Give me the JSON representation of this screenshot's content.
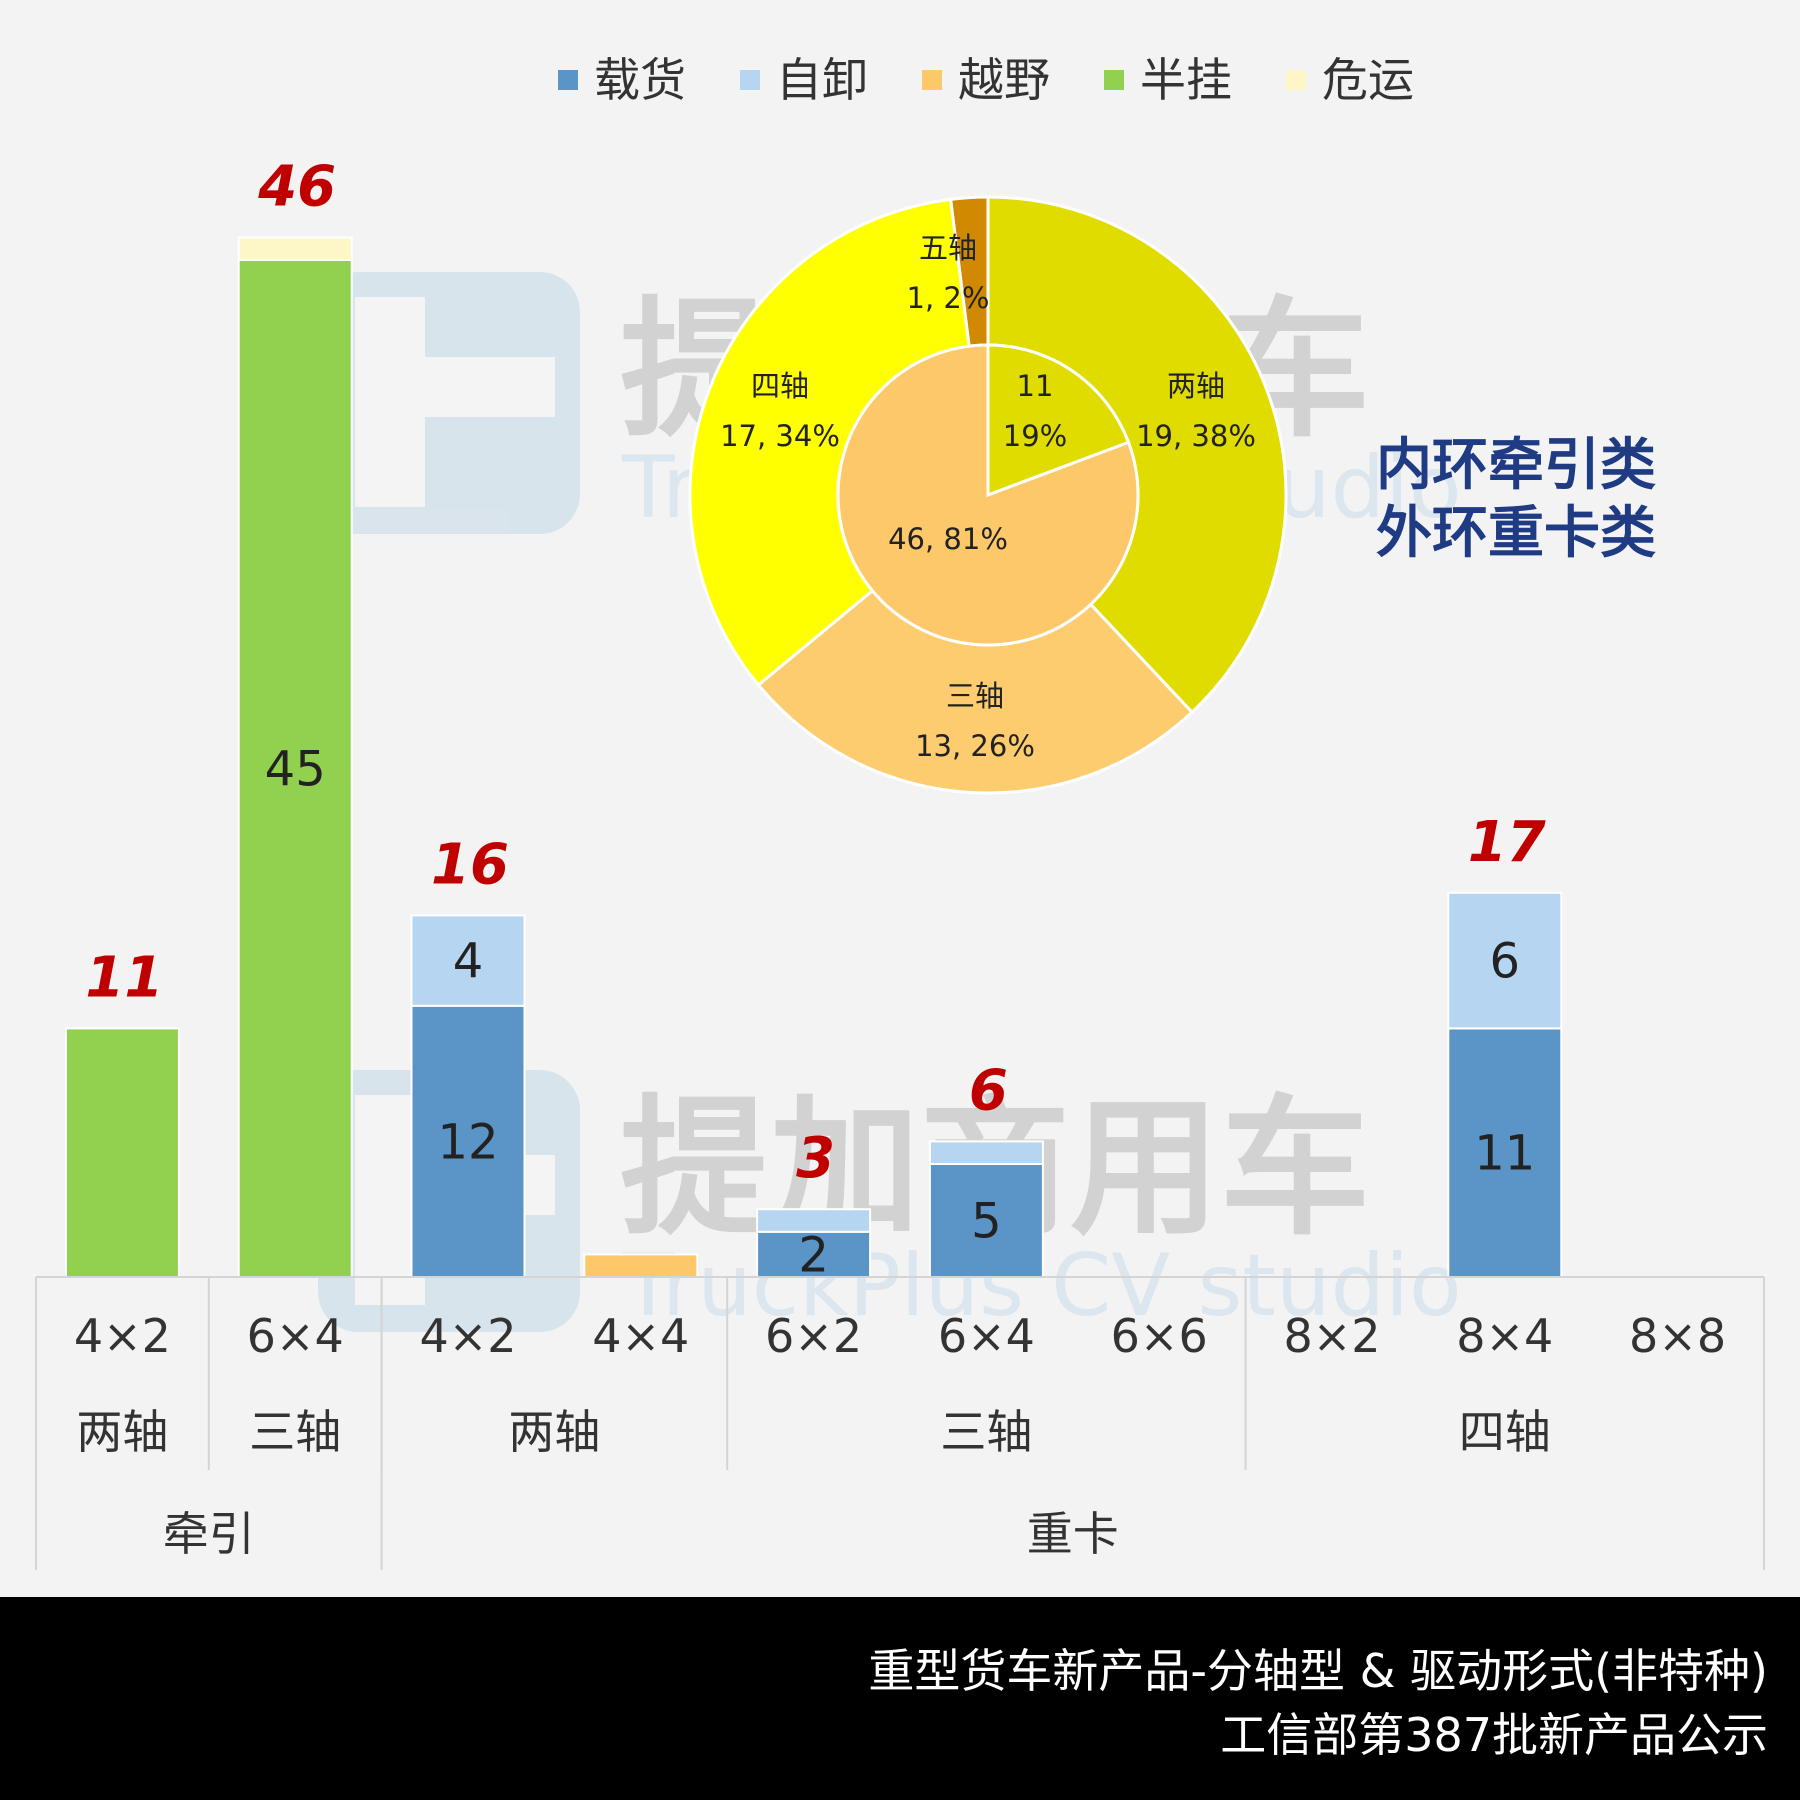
{
  "colors": {
    "background": "#f3f3f3",
    "载货": "#5b94c6",
    "自卸": "#b6d5f0",
    "越野": "#fdc86a",
    "半挂": "#92d050",
    "危运": "#fdf6c6",
    "total_label": "#c00000",
    "note": "#1f3b84",
    "inner_ring_牵引": "#fdc86a",
    "inner_ring_重卡": "#e1dc00",
    "outer_两轴": "#e1dc00",
    "outer_三轴": "#fdcc6e",
    "outer_四轴": "#ffff00",
    "outer_五轴": "#d08900"
  },
  "watermark": {
    "brand_cn": "提加商用车",
    "brand_en": "TruckPlus CV studio"
  },
  "note_lines": [
    "内环牵引类",
    "外环重卡类"
  ],
  "footer": {
    "line1": "重型货车新产品-分轴型 & 驱动形式(非特种)",
    "line2": "工信部第387批新产品公示"
  },
  "chart_data": [
    {
      "type": "bar",
      "stacked": true,
      "legend": [
        "载货",
        "自卸",
        "越野",
        "半挂",
        "危运"
      ],
      "legend_position": "top",
      "categories": [
        {
          "drive": "4×2",
          "axle": "两轴",
          "group": "牵引"
        },
        {
          "drive": "6×4",
          "axle": "三轴",
          "group": "牵引"
        },
        {
          "drive": "4×2",
          "axle": "两轴",
          "group": "重卡"
        },
        {
          "drive": "4×4",
          "axle": "两轴",
          "group": "重卡"
        },
        {
          "drive": "6×2",
          "axle": "三轴",
          "group": "重卡"
        },
        {
          "drive": "6×4",
          "axle": "三轴",
          "group": "重卡"
        },
        {
          "drive": "6×6",
          "axle": "三轴",
          "group": "重卡"
        },
        {
          "drive": "8×2",
          "axle": "四轴",
          "group": "重卡"
        },
        {
          "drive": "8×4",
          "axle": "四轴",
          "group": "重卡"
        },
        {
          "drive": "8×8",
          "axle": "四轴",
          "group": "重卡"
        }
      ],
      "axle_groups": [
        {
          "label": "两轴",
          "span": 1
        },
        {
          "label": "三轴",
          "span": 1
        },
        {
          "label": "两轴",
          "span": 2
        },
        {
          "label": "三轴",
          "span": 3
        },
        {
          "label": "四轴",
          "span": 3
        }
      ],
      "type_groups": [
        {
          "label": "牵引",
          "span": 2
        },
        {
          "label": "重卡",
          "span": 8
        }
      ],
      "series": [
        {
          "name": "载货",
          "values": [
            0,
            0,
            12,
            0,
            2,
            5,
            0,
            0,
            11,
            0
          ],
          "labels": [
            "",
            "",
            "12",
            "",
            "2",
            "5",
            "",
            "",
            "11",
            ""
          ]
        },
        {
          "name": "自卸",
          "values": [
            0,
            0,
            4,
            0,
            1,
            1,
            0,
            0,
            6,
            0
          ],
          "labels": [
            "",
            "",
            "4",
            "",
            "",
            "",
            "",
            "",
            "6",
            ""
          ]
        },
        {
          "name": "越野",
          "values": [
            0,
            0,
            0,
            1,
            0,
            0,
            0,
            0,
            0,
            0
          ],
          "labels": [
            "",
            "",
            "",
            "",
            "",
            "",
            "",
            "",
            "",
            ""
          ]
        },
        {
          "name": "半挂",
          "values": [
            11,
            45,
            0,
            0,
            0,
            0,
            0,
            0,
            0,
            0
          ],
          "labels": [
            "",
            "45",
            "",
            "",
            "",
            "",
            "",
            "",
            "",
            ""
          ]
        },
        {
          "name": "危运",
          "values": [
            0,
            1,
            0,
            0,
            0,
            0,
            0,
            0,
            0,
            0
          ],
          "labels": [
            "",
            "",
            "",
            "",
            "",
            "",
            "",
            "",
            "",
            ""
          ]
        }
      ],
      "totals": [
        "11",
        "46",
        "16",
        "",
        "3",
        "6",
        "",
        "",
        "17",
        ""
      ],
      "ylim": [
        0,
        50
      ]
    },
    {
      "type": "pie",
      "subtype": "doughnut",
      "inner_ring": [
        {
          "name": "",
          "value": 11,
          "label_lines": [
            "11",
            "19%"
          ]
        },
        {
          "name": "",
          "value": 46,
          "label_lines": [
            "46, 81%"
          ]
        }
      ],
      "outer_ring": [
        {
          "name": "两轴",
          "value": 19,
          "label_lines": [
            "两轴",
            "19, 38%"
          ]
        },
        {
          "name": "三轴",
          "value": 13,
          "label_lines": [
            "三轴",
            "13, 26%"
          ]
        },
        {
          "name": "四轴",
          "value": 17,
          "label_lines": [
            "四轴",
            "17, 34%"
          ]
        },
        {
          "name": "五轴",
          "value": 1,
          "label_lines": [
            "五轴",
            "1, 2%"
          ]
        }
      ]
    }
  ]
}
